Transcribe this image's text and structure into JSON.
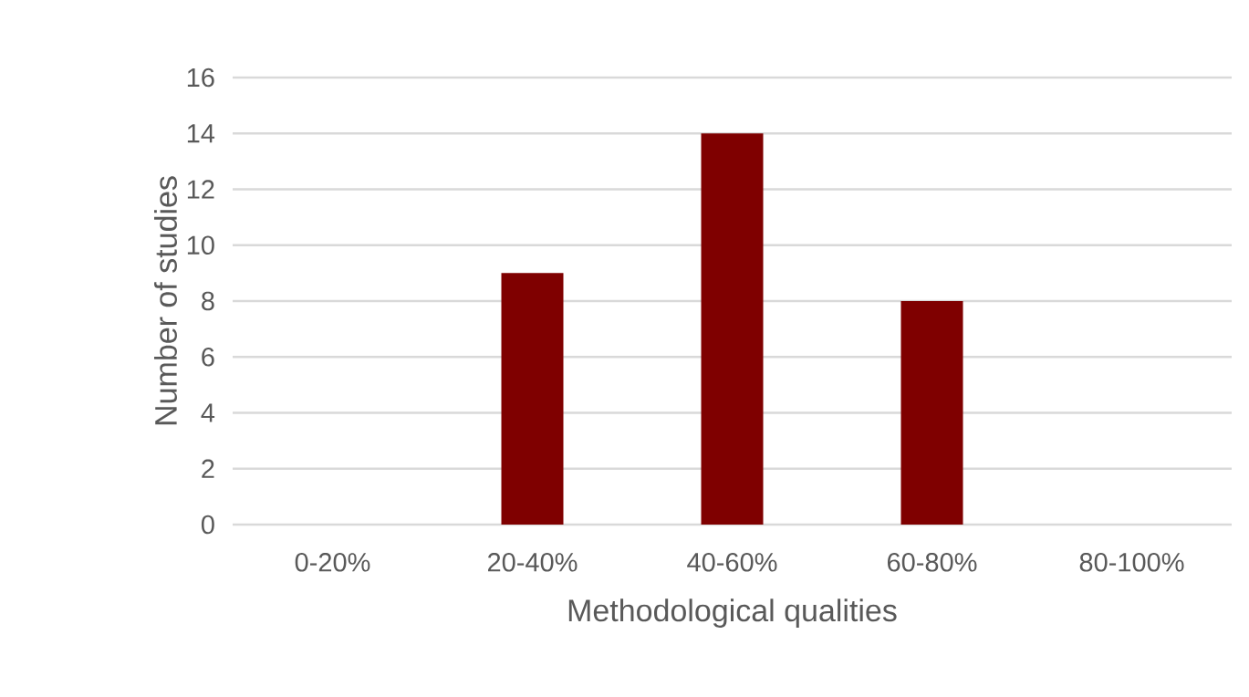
{
  "chart_data": {
    "type": "bar",
    "xlabel": "Methodological qualities",
    "ylabel": "Number of studies",
    "categories": [
      "0-20%",
      "20-40%",
      "40-60%",
      "60-80%",
      "80-100%"
    ],
    "values": [
      0,
      9,
      14,
      8,
      0
    ],
    "color": "#7f0000",
    "ylim": [
      0,
      16
    ],
    "yticks": [
      0,
      2,
      4,
      6,
      8,
      10,
      12,
      14,
      16
    ],
    "grid": "y"
  }
}
